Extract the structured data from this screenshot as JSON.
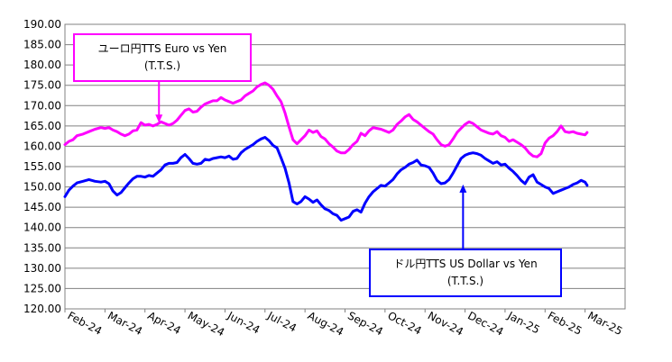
{
  "chart_data": {
    "type": "line",
    "title": "",
    "xlabel": "",
    "ylabel": "",
    "ylim": [
      120,
      190
    ],
    "ytick_step": 5,
    "ytick_labels": [
      "120.00",
      "125.00",
      "130.00",
      "135.00",
      "140.00",
      "145.00",
      "150.00",
      "155.00",
      "160.00",
      "165.00",
      "170.00",
      "175.00",
      "180.00",
      "185.00",
      "190.00"
    ],
    "xtick_labels": [
      "Feb-24",
      "Mar-24",
      "Apr-24",
      "May-24",
      "Jun-24",
      "Jul-24",
      "Aug-24",
      "Sep-24",
      "Oct-24",
      "Nov-24",
      "Dec-24",
      "Jan-25",
      "Feb-25",
      "Mar-25"
    ],
    "grid": true,
    "x_index_max": 14,
    "series": [
      {
        "name": "ユーロ円TTS Euro vs Yen (T.T.S.)",
        "color": "#ff00ff",
        "points": [
          [
            0.0,
            160.4
          ],
          [
            0.1,
            161.2
          ],
          [
            0.2,
            161.6
          ],
          [
            0.3,
            162.6
          ],
          [
            0.45,
            163.0
          ],
          [
            0.6,
            163.6
          ],
          [
            0.75,
            164.2
          ],
          [
            0.9,
            164.6
          ],
          [
            1.0,
            164.4
          ],
          [
            1.1,
            164.6
          ],
          [
            1.2,
            164.0
          ],
          [
            1.3,
            163.6
          ],
          [
            1.4,
            163.0
          ],
          [
            1.5,
            162.6
          ],
          [
            1.6,
            163.0
          ],
          [
            1.7,
            163.8
          ],
          [
            1.8,
            164.0
          ],
          [
            1.9,
            165.8
          ],
          [
            2.0,
            165.2
          ],
          [
            2.1,
            165.4
          ],
          [
            2.2,
            165.0
          ],
          [
            2.3,
            165.4
          ],
          [
            2.4,
            166.0
          ],
          [
            2.5,
            165.6
          ],
          [
            2.6,
            165.2
          ],
          [
            2.7,
            165.6
          ],
          [
            2.8,
            166.4
          ],
          [
            2.9,
            167.6
          ],
          [
            3.0,
            168.8
          ],
          [
            3.1,
            169.2
          ],
          [
            3.2,
            168.4
          ],
          [
            3.3,
            168.6
          ],
          [
            3.4,
            169.6
          ],
          [
            3.5,
            170.4
          ],
          [
            3.6,
            170.8
          ],
          [
            3.7,
            171.2
          ],
          [
            3.8,
            171.2
          ],
          [
            3.9,
            172.0
          ],
          [
            4.0,
            171.4
          ],
          [
            4.1,
            171.0
          ],
          [
            4.2,
            170.6
          ],
          [
            4.3,
            171.0
          ],
          [
            4.4,
            171.4
          ],
          [
            4.5,
            172.4
          ],
          [
            4.6,
            173.0
          ],
          [
            4.7,
            173.6
          ],
          [
            4.8,
            174.6
          ],
          [
            4.9,
            175.2
          ],
          [
            5.0,
            175.6
          ],
          [
            5.1,
            175.0
          ],
          [
            5.2,
            174.0
          ],
          [
            5.3,
            172.4
          ],
          [
            5.4,
            171.0
          ],
          [
            5.5,
            168.2
          ],
          [
            5.6,
            164.8
          ],
          [
            5.7,
            161.6
          ],
          [
            5.8,
            160.6
          ],
          [
            5.9,
            161.6
          ],
          [
            6.0,
            162.6
          ],
          [
            6.1,
            164.0
          ],
          [
            6.2,
            163.4
          ],
          [
            6.3,
            163.8
          ],
          [
            6.4,
            162.4
          ],
          [
            6.5,
            161.8
          ],
          [
            6.6,
            160.6
          ],
          [
            6.7,
            159.8
          ],
          [
            6.8,
            158.8
          ],
          [
            6.9,
            158.4
          ],
          [
            7.0,
            158.4
          ],
          [
            7.1,
            159.2
          ],
          [
            7.2,
            160.4
          ],
          [
            7.3,
            161.2
          ],
          [
            7.4,
            163.2
          ],
          [
            7.5,
            162.6
          ],
          [
            7.6,
            163.8
          ],
          [
            7.7,
            164.6
          ],
          [
            7.8,
            164.4
          ],
          [
            7.9,
            164.2
          ],
          [
            8.0,
            163.8
          ],
          [
            8.1,
            163.4
          ],
          [
            8.2,
            164.0
          ],
          [
            8.3,
            165.4
          ],
          [
            8.4,
            166.2
          ],
          [
            8.5,
            167.2
          ],
          [
            8.6,
            167.8
          ],
          [
            8.7,
            166.6
          ],
          [
            8.8,
            166.0
          ],
          [
            8.9,
            165.2
          ],
          [
            9.0,
            164.4
          ],
          [
            9.1,
            163.6
          ],
          [
            9.2,
            163.0
          ],
          [
            9.3,
            161.6
          ],
          [
            9.4,
            160.4
          ],
          [
            9.5,
            160.0
          ],
          [
            9.6,
            160.4
          ],
          [
            9.7,
            161.8
          ],
          [
            9.8,
            163.4
          ],
          [
            9.9,
            164.4
          ],
          [
            10.0,
            165.4
          ],
          [
            10.1,
            166.0
          ],
          [
            10.2,
            165.6
          ],
          [
            10.3,
            164.8
          ],
          [
            10.4,
            164.0
          ],
          [
            10.5,
            163.6
          ],
          [
            10.6,
            163.2
          ],
          [
            10.7,
            163.0
          ],
          [
            10.8,
            163.6
          ],
          [
            10.9,
            162.6
          ],
          [
            11.0,
            162.2
          ],
          [
            11.1,
            161.2
          ],
          [
            11.2,
            161.6
          ],
          [
            11.3,
            161.0
          ],
          [
            11.4,
            160.4
          ],
          [
            11.5,
            159.6
          ],
          [
            11.6,
            158.4
          ],
          [
            11.7,
            157.6
          ],
          [
            11.8,
            157.4
          ],
          [
            11.9,
            158.2
          ],
          [
            12.0,
            160.8
          ],
          [
            12.1,
            162.0
          ],
          [
            12.2,
            162.6
          ],
          [
            12.3,
            163.6
          ],
          [
            12.4,
            165.0
          ],
          [
            12.5,
            163.6
          ],
          [
            12.6,
            163.4
          ],
          [
            12.7,
            163.6
          ],
          [
            12.8,
            163.2
          ],
          [
            12.9,
            163.0
          ],
          [
            13.0,
            162.8
          ],
          [
            13.05,
            163.4
          ]
        ]
      },
      {
        "name": "ドル円TTS  US Dollar vs Yen (T.T.S.)",
        "color": "#0000ff",
        "points": [
          [
            0.0,
            147.6
          ],
          [
            0.1,
            149.2
          ],
          [
            0.2,
            150.2
          ],
          [
            0.3,
            151.0
          ],
          [
            0.45,
            151.4
          ],
          [
            0.6,
            151.8
          ],
          [
            0.75,
            151.4
          ],
          [
            0.9,
            151.2
          ],
          [
            1.0,
            151.4
          ],
          [
            1.1,
            150.8
          ],
          [
            1.2,
            149.0
          ],
          [
            1.3,
            148.0
          ],
          [
            1.4,
            148.6
          ],
          [
            1.5,
            149.8
          ],
          [
            1.6,
            151.0
          ],
          [
            1.7,
            152.0
          ],
          [
            1.8,
            152.6
          ],
          [
            1.9,
            152.6
          ],
          [
            2.0,
            152.4
          ],
          [
            2.1,
            152.8
          ],
          [
            2.2,
            152.6
          ],
          [
            2.3,
            153.4
          ],
          [
            2.4,
            154.2
          ],
          [
            2.5,
            155.4
          ],
          [
            2.6,
            155.8
          ],
          [
            2.7,
            155.8
          ],
          [
            2.8,
            156.0
          ],
          [
            2.9,
            157.2
          ],
          [
            3.0,
            158.0
          ],
          [
            3.1,
            157.0
          ],
          [
            3.2,
            155.8
          ],
          [
            3.3,
            155.6
          ],
          [
            3.4,
            155.8
          ],
          [
            3.5,
            156.8
          ],
          [
            3.6,
            156.6
          ],
          [
            3.7,
            157.0
          ],
          [
            3.8,
            157.2
          ],
          [
            3.9,
            157.4
          ],
          [
            4.0,
            157.2
          ],
          [
            4.1,
            157.6
          ],
          [
            4.2,
            156.8
          ],
          [
            4.3,
            157.0
          ],
          [
            4.4,
            158.4
          ],
          [
            4.5,
            159.2
          ],
          [
            4.6,
            159.8
          ],
          [
            4.7,
            160.4
          ],
          [
            4.8,
            161.2
          ],
          [
            4.9,
            161.8
          ],
          [
            5.0,
            162.2
          ],
          [
            5.1,
            161.4
          ],
          [
            5.2,
            160.2
          ],
          [
            5.3,
            159.6
          ],
          [
            5.4,
            157.2
          ],
          [
            5.5,
            154.6
          ],
          [
            5.6,
            151.0
          ],
          [
            5.7,
            146.4
          ],
          [
            5.8,
            145.8
          ],
          [
            5.9,
            146.4
          ],
          [
            6.0,
            147.6
          ],
          [
            6.1,
            147.0
          ],
          [
            6.2,
            146.2
          ],
          [
            6.3,
            146.8
          ],
          [
            6.4,
            145.6
          ],
          [
            6.5,
            144.6
          ],
          [
            6.6,
            144.2
          ],
          [
            6.7,
            143.4
          ],
          [
            6.8,
            143.0
          ],
          [
            6.9,
            141.8
          ],
          [
            7.0,
            142.2
          ],
          [
            7.1,
            142.6
          ],
          [
            7.2,
            144.0
          ],
          [
            7.3,
            144.4
          ],
          [
            7.4,
            143.8
          ],
          [
            7.5,
            146.0
          ],
          [
            7.6,
            147.6
          ],
          [
            7.7,
            148.8
          ],
          [
            7.8,
            149.6
          ],
          [
            7.9,
            150.4
          ],
          [
            8.0,
            150.2
          ],
          [
            8.1,
            151.0
          ],
          [
            8.2,
            151.8
          ],
          [
            8.3,
            153.2
          ],
          [
            8.4,
            154.2
          ],
          [
            8.5,
            154.8
          ],
          [
            8.6,
            155.6
          ],
          [
            8.7,
            156.0
          ],
          [
            8.8,
            156.6
          ],
          [
            8.9,
            155.4
          ],
          [
            9.0,
            155.2
          ],
          [
            9.1,
            154.8
          ],
          [
            9.2,
            153.4
          ],
          [
            9.3,
            151.6
          ],
          [
            9.4,
            150.8
          ],
          [
            9.5,
            151.0
          ],
          [
            9.6,
            151.8
          ],
          [
            9.7,
            153.4
          ],
          [
            9.8,
            155.2
          ],
          [
            9.9,
            157.0
          ],
          [
            10.0,
            157.8
          ],
          [
            10.1,
            158.2
          ],
          [
            10.2,
            158.4
          ],
          [
            10.3,
            158.2
          ],
          [
            10.4,
            157.8
          ],
          [
            10.5,
            157.0
          ],
          [
            10.6,
            156.4
          ],
          [
            10.7,
            155.8
          ],
          [
            10.8,
            156.2
          ],
          [
            10.9,
            155.4
          ],
          [
            11.0,
            155.6
          ],
          [
            11.1,
            154.6
          ],
          [
            11.2,
            153.8
          ],
          [
            11.3,
            152.8
          ],
          [
            11.4,
            151.6
          ],
          [
            11.5,
            150.8
          ],
          [
            11.6,
            152.4
          ],
          [
            11.7,
            153.0
          ],
          [
            11.8,
            151.2
          ],
          [
            11.9,
            150.6
          ],
          [
            12.0,
            150.0
          ],
          [
            12.1,
            149.6
          ],
          [
            12.2,
            148.4
          ],
          [
            12.3,
            148.8
          ],
          [
            12.4,
            149.2
          ],
          [
            12.5,
            149.6
          ],
          [
            12.6,
            150.0
          ],
          [
            12.7,
            150.6
          ],
          [
            12.8,
            151.0
          ],
          [
            12.9,
            151.6
          ],
          [
            13.0,
            151.2
          ],
          [
            13.05,
            150.4
          ]
        ]
      }
    ],
    "annotations": [
      {
        "series": 0,
        "lines": [
          "ユーロ円TTS  Euro vs Yen",
          "(T.T.S.)"
        ],
        "border_color": "#ff00ff",
        "arrow_to_x_index": 2.35,
        "arrow_to_value": 165.8
      },
      {
        "series": 1,
        "lines": [
          "ドル円TTS   US Dollar vs Yen",
          "(T.T.S.)"
        ],
        "border_color": "#0000ff",
        "arrow_to_x_index": 9.95,
        "arrow_to_value": 150.6
      }
    ]
  }
}
